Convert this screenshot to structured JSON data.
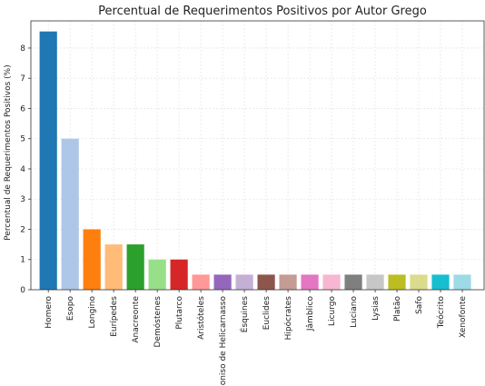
{
  "chart_data": {
    "type": "bar",
    "title": "Percentual de Requerimentos Positivos por Autor Grego",
    "xlabel": "",
    "ylabel": "Percentual de Requerimentos Positivos (%)",
    "ylim": [
      0,
      8.9
    ],
    "yticks": [
      0,
      1,
      2,
      3,
      4,
      5,
      6,
      7,
      8
    ],
    "grid": true,
    "categories": [
      "Homero",
      "Esopo",
      "Longino",
      "Eurípedes",
      "Anacreonte",
      "Demóstenes",
      "Plutarco",
      "Aristóteles",
      "Dioniso de Helicarnasso",
      "Ésquines",
      "Euclides",
      "Hipócrates",
      "Jâmblico",
      "Licurgo",
      "Luciano",
      "Lysias",
      "Platão",
      "Safo",
      "Teócrito",
      "Xenofonte"
    ],
    "values": [
      8.55,
      5.0,
      2.0,
      1.5,
      1.5,
      1.0,
      1.0,
      0.5,
      0.5,
      0.5,
      0.5,
      0.5,
      0.5,
      0.5,
      0.5,
      0.5,
      0.5,
      0.5,
      0.5,
      0.5
    ],
    "colors": [
      "#1f77b4",
      "#aec7e8",
      "#ff7f0e",
      "#ffbb78",
      "#2ca02c",
      "#98df8a",
      "#d62728",
      "#ff9896",
      "#9467bd",
      "#c5b0d5",
      "#8c564b",
      "#c49c94",
      "#e377c2",
      "#f7b6d2",
      "#7f7f7f",
      "#c7c7c7",
      "#bcbd22",
      "#dbdb8d",
      "#17becf",
      "#9edae5"
    ]
  }
}
